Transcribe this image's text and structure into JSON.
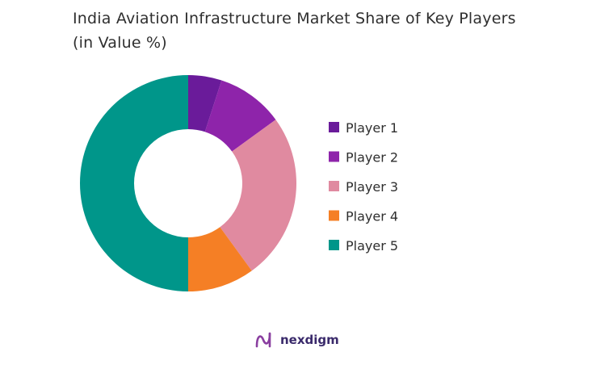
{
  "chart_data": {
    "type": "pie",
    "donut": true,
    "title": "India Aviation Infrastructure Market Share of Key Players (in Value %)",
    "categories": [
      "Player 1",
      "Player 2",
      "Player 3",
      "Player 4",
      "Player 5"
    ],
    "values": [
      5,
      10,
      25,
      10,
      50
    ],
    "colors": [
      "#6a1b9a",
      "#8e24aa",
      "#e08aa0",
      "#f57f25",
      "#00968a"
    ],
    "legend_position": "right"
  },
  "brand": {
    "name": "nexdigm",
    "logo_color": "#8a3fa0"
  }
}
